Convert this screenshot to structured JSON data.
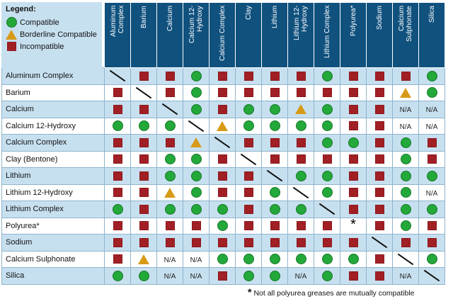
{
  "legend": {
    "title": "Legend:",
    "items": [
      {
        "symbol": "circle",
        "label": "Compatible"
      },
      {
        "symbol": "triangle",
        "label": "Borderline Compatible"
      },
      {
        "symbol": "square",
        "label": "Incompatible"
      }
    ]
  },
  "colors": {
    "header_bg": "#10517e",
    "light_row": "#c7e0f0",
    "compatible": "#23a83a",
    "borderline": "#d79a18",
    "incompatible": "#c0272d"
  },
  "columns": [
    "Aluminum Complex",
    "Barium",
    "Calcium",
    "Calcium 12-Hydroxy",
    "Calcium Complex",
    "Clay",
    "Lithium",
    "Lithium 12-Hydroxy",
    "Lithium Complex",
    "Polyurea*",
    "Sodium",
    "Calcium Sulphonate",
    "Silica"
  ],
  "rows": [
    {
      "label": "Aluminum Complex",
      "cells": [
        "D",
        "I",
        "I",
        "C",
        "I",
        "I",
        "I",
        "I",
        "C",
        "I",
        "I",
        "I",
        "C"
      ]
    },
    {
      "label": "Barium",
      "cells": [
        "I",
        "D",
        "I",
        "C",
        "I",
        "I",
        "I",
        "I",
        "I",
        "I",
        "I",
        "B",
        "C"
      ]
    },
    {
      "label": "Calcium",
      "cells": [
        "I",
        "I",
        "D",
        "C",
        "I",
        "C",
        "C",
        "B",
        "C",
        "I",
        "I",
        "N/A",
        "N/A"
      ]
    },
    {
      "label": "Calcium 12-Hydroxy",
      "cells": [
        "C",
        "C",
        "C",
        "D",
        "B",
        "C",
        "C",
        "C",
        "C",
        "I",
        "I",
        "N/A",
        "N/A"
      ]
    },
    {
      "label": "Calcium Complex",
      "cells": [
        "I",
        "I",
        "I",
        "B",
        "D",
        "I",
        "I",
        "I",
        "C",
        "C",
        "I",
        "C",
        "I"
      ]
    },
    {
      "label": "Clay (Bentone)",
      "cells": [
        "I",
        "I",
        "C",
        "C",
        "I",
        "D",
        "I",
        "I",
        "I",
        "I",
        "I",
        "C",
        "I"
      ]
    },
    {
      "label": "Lithium",
      "cells": [
        "I",
        "I",
        "C",
        "C",
        "I",
        "I",
        "D",
        "C",
        "C",
        "I",
        "I",
        "C",
        "C"
      ]
    },
    {
      "label": "Lithium 12-Hydroxy",
      "cells": [
        "I",
        "I",
        "B",
        "C",
        "I",
        "I",
        "C",
        "D",
        "C",
        "I",
        "I",
        "C",
        "N/A"
      ]
    },
    {
      "label": "Lithium Complex",
      "cells": [
        "C",
        "I",
        "C",
        "C",
        "C",
        "I",
        "C",
        "C",
        "D",
        "I",
        "I",
        "C",
        "C"
      ]
    },
    {
      "label": "Polyurea*",
      "cells": [
        "I",
        "I",
        "I",
        "I",
        "C",
        "I",
        "I",
        "I",
        "I",
        "S",
        "I",
        "C",
        "I"
      ]
    },
    {
      "label": "Sodium",
      "cells": [
        "I",
        "I",
        "I",
        "I",
        "I",
        "I",
        "I",
        "I",
        "I",
        "I",
        "D",
        "I",
        "I"
      ]
    },
    {
      "label": "Calcium Sulphonate",
      "cells": [
        "I",
        "B",
        "N/A",
        "N/A",
        "C",
        "C",
        "C",
        "C",
        "C",
        "C",
        "I",
        "D",
        "C"
      ]
    },
    {
      "label": "Silica",
      "cells": [
        "C",
        "C",
        "N/A",
        "N/A",
        "I",
        "C",
        "C",
        "N/A",
        "C",
        "I",
        "I",
        "N/A",
        "D"
      ]
    }
  ],
  "footnote": {
    "star": "*",
    "text": "Not all polyurea greases are mutually compatible"
  }
}
